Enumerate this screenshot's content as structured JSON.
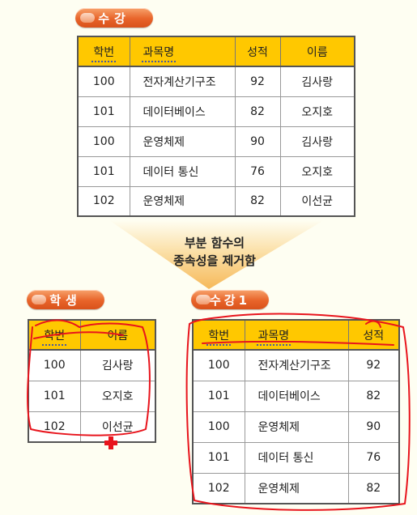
{
  "top": {
    "title": "수강",
    "headers": [
      "학번",
      "과목명",
      "성적",
      "이름"
    ],
    "rows": [
      [
        "100",
        "전자계산기구조",
        "92",
        "김사랑"
      ],
      [
        "101",
        "데이터베이스",
        "82",
        "오지호"
      ],
      [
        "100",
        "운영체제",
        "90",
        "김사랑"
      ],
      [
        "101",
        "데이터 통신",
        "76",
        "오지호"
      ],
      [
        "102",
        "운영체제",
        "82",
        "이선균"
      ]
    ]
  },
  "arrow": {
    "line1": "부분 함수의",
    "line2": "종속성을 제거함"
  },
  "student": {
    "title": "학생",
    "headers": [
      "학번",
      "이름"
    ],
    "rows": [
      [
        "100",
        "김사랑"
      ],
      [
        "101",
        "오지호"
      ],
      [
        "102",
        "이선균"
      ]
    ]
  },
  "course1": {
    "title": "수강1",
    "headers": [
      "학번",
      "과목명",
      "성적"
    ],
    "rows": [
      [
        "100",
        "전자계산기구조",
        "92"
      ],
      [
        "101",
        "데이터베이스",
        "82"
      ],
      [
        "100",
        "운영체제",
        "90"
      ],
      [
        "101",
        "데이터 통신",
        "76"
      ],
      [
        "102",
        "운영체제",
        "82"
      ]
    ]
  },
  "colors": {
    "pill": "#e8642a",
    "header": "#ffc800",
    "pen": "#e8141c",
    "arrow": "#f7c870"
  }
}
